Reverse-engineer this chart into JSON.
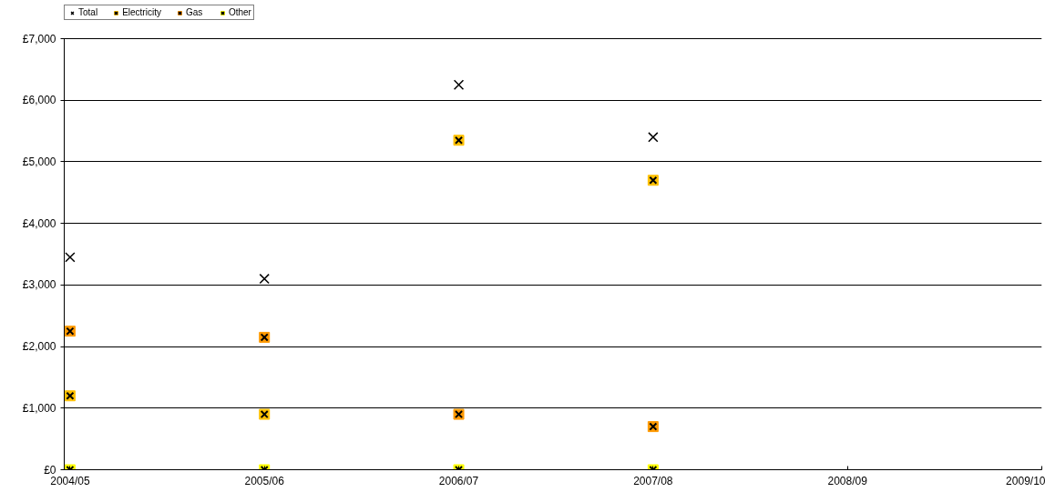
{
  "chart_data": {
    "type": "scatter",
    "categories": [
      "2004/05",
      "2005/06",
      "2006/07",
      "2007/08",
      "2008/09",
      "2009/10"
    ],
    "series": [
      {
        "name": "Total",
        "color": "#000000",
        "marker": "cross",
        "values": [
          3450,
          3100,
          6250,
          5400,
          null,
          null
        ]
      },
      {
        "name": "Electricity",
        "color": "#ffc000",
        "marker": "square",
        "values": [
          1200,
          900,
          5350,
          4700,
          null,
          null
        ]
      },
      {
        "name": "Gas",
        "color": "#ff9900",
        "marker": "square",
        "values": [
          2250,
          2150,
          900,
          700,
          null,
          null
        ]
      },
      {
        "name": "Other",
        "color": "#ffff00",
        "marker": "square",
        "values": [
          0,
          0,
          0,
          0,
          null,
          null
        ]
      }
    ],
    "ylim": [
      0,
      7000
    ],
    "yticks": [
      {
        "value": 0,
        "label": "£0"
      },
      {
        "value": 1000,
        "label": "£1,000"
      },
      {
        "value": 2000,
        "label": "£2,000"
      },
      {
        "value": 3000,
        "label": "£3,000"
      },
      {
        "value": 4000,
        "label": "£4,000"
      },
      {
        "value": 5000,
        "label": "£5,000"
      },
      {
        "value": 6000,
        "label": "£6,000"
      },
      {
        "value": 7000,
        "label": "£7,000"
      }
    ],
    "grid": "y",
    "legend": "top left"
  }
}
